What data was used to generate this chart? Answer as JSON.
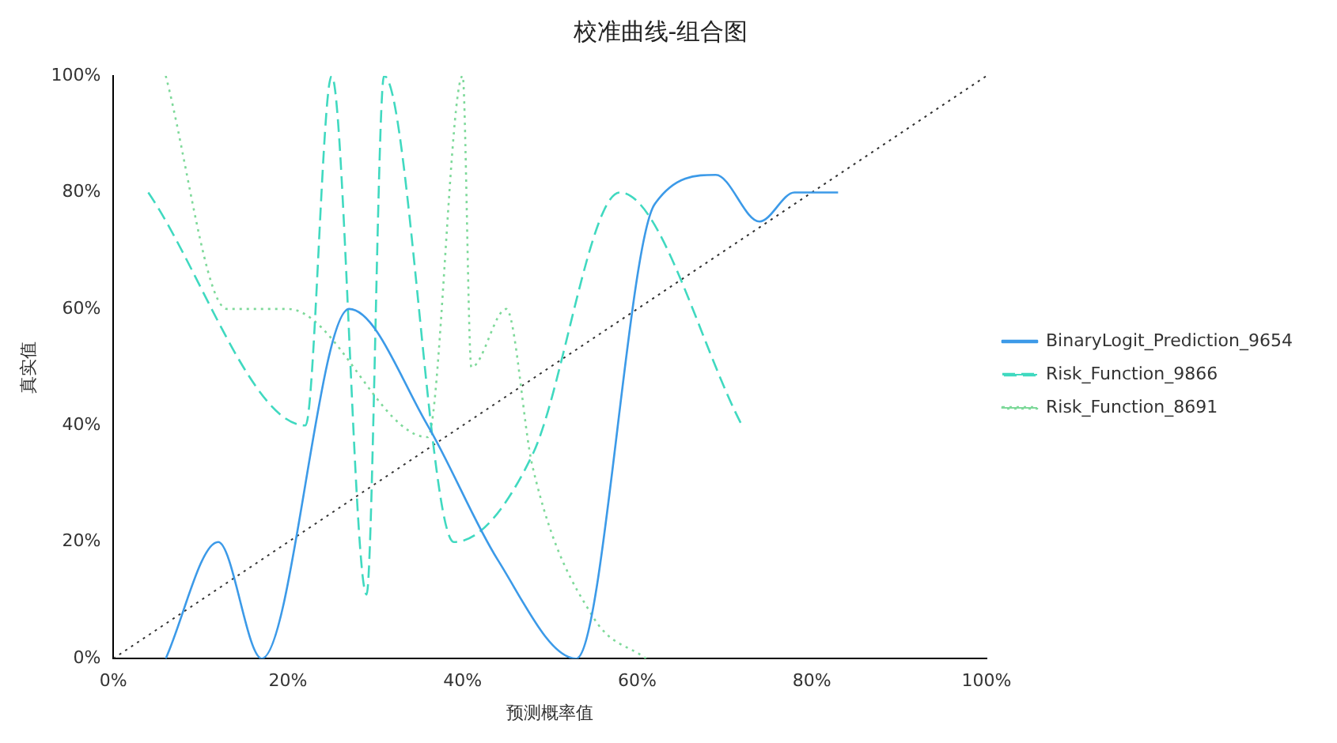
{
  "chart_data": {
    "type": "line",
    "title": "校准曲线-组合图",
    "xlabel": "预测概率值",
    "ylabel": "真实值",
    "xlim": [
      0,
      1
    ],
    "ylim": [
      0,
      1
    ],
    "xticks": [
      {
        "value": 0,
        "label": "0%"
      },
      {
        "value": 0.2,
        "label": "20%"
      },
      {
        "value": 0.4,
        "label": "40%"
      },
      {
        "value": 0.6,
        "label": "60%"
      },
      {
        "value": 0.8,
        "label": "80%"
      },
      {
        "value": 1,
        "label": "100%"
      }
    ],
    "yticks": [
      {
        "value": 0,
        "label": "0%"
      },
      {
        "value": 0.2,
        "label": "20%"
      },
      {
        "value": 0.4,
        "label": "40%"
      },
      {
        "value": 0.6,
        "label": "60%"
      },
      {
        "value": 0.8,
        "label": "80%"
      },
      {
        "value": 1,
        "label": "100%"
      }
    ],
    "grid": false,
    "legend": "right",
    "marker": "none",
    "series": [
      {
        "name": "BinaryLogit_Prediction_9654",
        "color": "#3c9ae8",
        "line_style": "solid",
        "x": [
          0.06,
          0.12,
          0.17,
          0.27,
          0.36,
          0.44,
          0.53,
          0.62,
          0.69,
          0.74,
          0.78,
          0.83
        ],
        "values": [
          0,
          0.2,
          0,
          0.6,
          0.4,
          0.17,
          0,
          0.78,
          0.83,
          0.75,
          0.8,
          0.8
        ]
      },
      {
        "name": "Risk_Function_9866",
        "color": "#40d9c0",
        "line_style": "dashed",
        "x": [
          0.04,
          0.22,
          0.25,
          0.29,
          0.31,
          0.39,
          0.48,
          0.58,
          0.72
        ],
        "values": [
          0.8,
          0.4,
          1,
          0.11,
          1,
          0.2,
          0.35,
          0.8,
          0.4
        ]
      },
      {
        "name": "Risk_Function_8691",
        "color": "#7ed99a",
        "line_style": "dotted",
        "x": [
          0.06,
          0.13,
          0.2,
          0.36,
          0.4,
          0.41,
          0.45,
          0.48,
          0.55,
          0.61
        ],
        "values": [
          1,
          0.6,
          0.6,
          0.38,
          1,
          0.5,
          0.6,
          0.33,
          0.07,
          0
        ]
      },
      {
        "color": "#333333",
        "line_style": "dotted",
        "x": [
          0,
          1
        ],
        "values": [
          0,
          1
        ]
      }
    ]
  }
}
